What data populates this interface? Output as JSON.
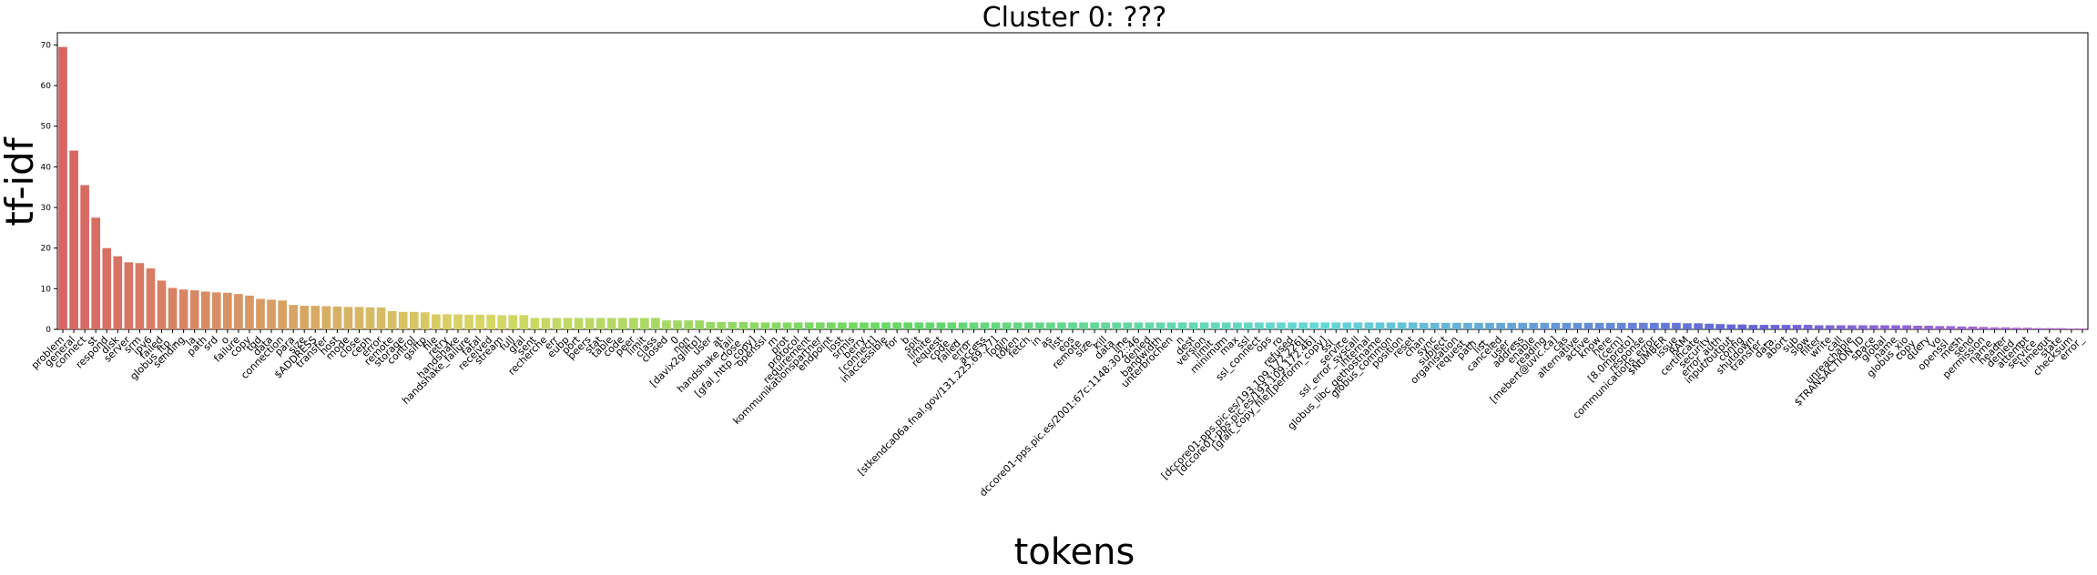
{
  "chart_data": {
    "type": "bar",
    "title": "Cluster 0: ???",
    "xlabel": "tokens",
    "ylabel": "tf-idf",
    "ylim": [
      0,
      73
    ],
    "yticks": [
      0,
      10,
      20,
      30,
      40,
      50,
      60,
      70
    ],
    "grid": false,
    "legend": "none",
    "palette": "husl",
    "categories": [
      "problem",
      "general",
      "connect",
      "st",
      "respond",
      "disk",
      "server",
      "srm",
      "ipv6",
      "failed",
      "globus_ftp_",
      "sending",
      "la",
      "path",
      "srd",
      "o",
      "failure",
      "copy",
      "tqd",
      "data",
      "connection",
      "para",
      "size",
      "$ADDRESS",
      "transfer",
      "host",
      "mode",
      "close",
      "ceph",
      "error",
      "remote",
      "storage",
      "control",
      "gsiftp",
      "file",
      "retry",
      "handshake",
      "handshake_failure",
      "fatal",
      "received",
      "stream",
      "full",
      "gfal",
      "sent",
      "recherche",
      "err",
      "eubp",
      "port",
      "peers",
      "stat",
      "table",
      "code",
      "peer",
      "limit",
      "class",
      "closed",
      "0",
      "non",
      "[davix2gliftp]",
      "user",
      "at",
      "handshake_fail",
      "close_",
      "[gfal_http_copy]",
      "openssl",
      "m",
      "prot",
      "protocol",
      "requirement",
      "kommunikationspartner",
      "endpoint",
      "lost",
      "srmls",
      "berry",
      "[connect]",
      "inaccessible",
      "for",
      "b",
      "spit",
      "limite",
      "request",
      "code_",
      "failed_",
      "error_",
      "access",
      "[stkendca06a.fnal.gov/131.225.69.27]",
      "login",
      "token",
      "fetch",
      "in",
      "as",
      "list",
      "eos",
      "remote_",
      "size_",
      "kill",
      "data_",
      "line",
      "dccore01-pps.pic.es/2001:67c:1148:302::46",
      "denied",
      "bandwidth",
      "unterbrochen",
      "n",
      "dest",
      "version",
      "limit_",
      "minimum",
      "max",
      "ssl",
      "ssl_connect",
      "ops",
      "ro",
      "refused",
      "[dccore01-pps.pic.es/193.109.172.226]",
      "[dccore01-pps.pic.es/193.109.172.46]",
      "[gfalt_copy_file][perform_copy]",
      "ssl_",
      "service",
      "ssl_error_syscall",
      "internal",
      "globus_libc_gethostname",
      "globus_common",
      "position",
      "reset",
      "chan",
      "sync",
      "subject",
      "organisation",
      "request_",
      "path_",
      "list_",
      "canceled",
      "user_",
      "address",
      "enable",
      "reading",
      "[mebert@uvic.ca]",
      "cas",
      "alternative",
      "active",
      "know",
      "here",
      "(cern)",
      "[8.0mproto]",
      "response",
      "communications_error",
      "$NUMBER",
      "issue",
      "RAM",
      "certificate",
      "security",
      "error_auth",
      "input/output",
      "config",
      "shutdown",
      "transfer_",
      "data.",
      "abort",
      "sub",
      "slow",
      "filter",
      "write",
      "call",
      "unreachable",
      "$TRANSACTION_ID",
      "space",
      "global",
      "name",
      "globus_xio",
      "copy_",
      "query",
      "vo",
      "openssl_",
      "mesh",
      "send",
      "permission",
      "name_",
      "header",
      "denied_",
      "attempt",
      "service_",
      "timeout",
      "state",
      "checksum",
      "error_"
    ],
    "values": [
      69.5,
      44.0,
      35.5,
      27.5,
      20.0,
      18.0,
      16.5,
      16.3,
      15.0,
      12.0,
      10.2,
      9.8,
      9.6,
      9.3,
      9.1,
      9.0,
      8.7,
      8.3,
      7.5,
      7.3,
      7.1,
      6.0,
      5.8,
      5.8,
      5.7,
      5.6,
      5.5,
      5.5,
      5.4,
      5.4,
      4.5,
      4.3,
      4.3,
      4.2,
      3.7,
      3.7,
      3.7,
      3.6,
      3.6,
      3.6,
      3.5,
      3.5,
      3.5,
      2.8,
      2.8,
      2.8,
      2.8,
      2.8,
      2.8,
      2.8,
      2.8,
      2.8,
      2.8,
      2.8,
      2.8,
      2.2,
      2.2,
      2.2,
      2.2,
      1.8,
      1.8,
      1.8,
      1.8,
      1.7,
      1.7,
      1.7,
      1.7,
      1.7,
      1.7,
      1.7,
      1.7,
      1.7,
      1.7,
      1.7,
      1.7,
      1.7,
      1.7,
      1.7,
      1.7,
      1.7,
      1.7,
      1.7,
      1.7,
      1.7,
      1.7,
      1.7,
      1.7,
      1.7,
      1.7,
      1.7,
      1.7,
      1.7,
      1.7,
      1.7,
      1.7,
      1.7,
      1.7,
      1.7,
      1.7,
      1.7,
      1.7,
      1.7,
      1.7,
      1.7,
      1.7,
      1.7,
      1.7,
      1.7,
      1.7,
      1.7,
      1.7,
      1.7,
      1.7,
      1.7,
      1.7,
      1.7,
      1.7,
      1.7,
      1.7,
      1.7,
      1.7,
      1.7,
      1.7,
      1.7,
      1.6,
      1.6,
      1.6,
      1.6,
      1.6,
      1.6,
      1.6,
      1.6,
      1.6,
      1.6,
      1.6,
      1.6,
      1.6,
      1.6,
      1.6,
      1.6,
      1.6,
      1.6,
      1.6,
      1.6,
      1.6,
      1.6,
      1.6,
      1.6,
      1.5,
      1.5,
      1.4,
      1.3,
      1.2,
      1.2,
      1.1,
      1.1,
      1.1,
      1.1,
      1.1,
      1.1,
      1.0,
      1.0,
      1.0,
      1.0,
      1.0,
      1.0,
      1.0,
      1.0,
      1.0,
      0.9,
      0.9,
      0.8,
      0.8,
      0.7,
      0.7,
      0.6,
      0.5,
      0.5,
      0.4,
      0.4,
      0.3,
      0.3,
      0.3,
      0.2,
      0.2
    ]
  }
}
